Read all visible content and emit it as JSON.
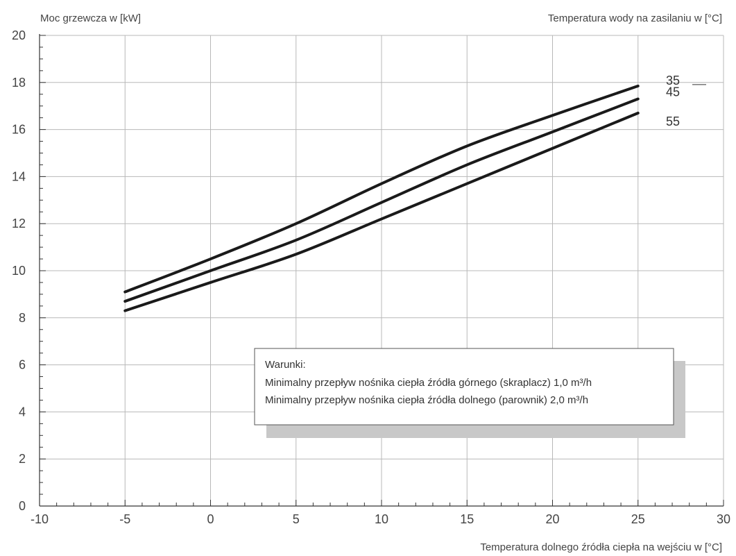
{
  "chart_data": {
    "type": "line",
    "ylabel": "Moc grzewcza w [kW]",
    "xlabel": "Temperatura dolnego źródła ciepła na wejściu w [°C]",
    "legend_title": "Temperatura wody na zasilaniu w [°C]",
    "xlim": [
      -10,
      30
    ],
    "ylim": [
      0,
      20
    ],
    "x_ticks": [
      "-10",
      "-5",
      "0",
      "5",
      "10",
      "15",
      "20",
      "25",
      "30"
    ],
    "y_ticks": [
      "0",
      "2",
      "4",
      "6",
      "8",
      "10",
      "12",
      "14",
      "16",
      "18",
      "20"
    ],
    "grid": true,
    "series": [
      {
        "name": "35",
        "x": [
          -5,
          0,
          5,
          10,
          15,
          20,
          25
        ],
        "y": [
          9.1,
          10.5,
          12.0,
          13.7,
          15.3,
          16.6,
          17.85
        ]
      },
      {
        "name": "45",
        "x": [
          -5,
          0,
          5,
          10,
          15,
          20,
          25
        ],
        "y": [
          8.7,
          10.0,
          11.3,
          12.9,
          14.5,
          15.9,
          17.3
        ]
      },
      {
        "name": "55",
        "x": [
          -5,
          0,
          5,
          10,
          15,
          20,
          25
        ],
        "y": [
          8.3,
          9.5,
          10.7,
          12.2,
          13.7,
          15.2,
          16.7
        ]
      }
    ],
    "note": {
      "title": "Warunki:",
      "lines": [
        "Minimalny przepływ nośnika ciepła źródła górnego (skraplacz) 1,0 m³/h",
        "Minimalny przepływ nośnika ciepła źródła dolnego (parownik) 2,0 m³/h"
      ]
    }
  }
}
